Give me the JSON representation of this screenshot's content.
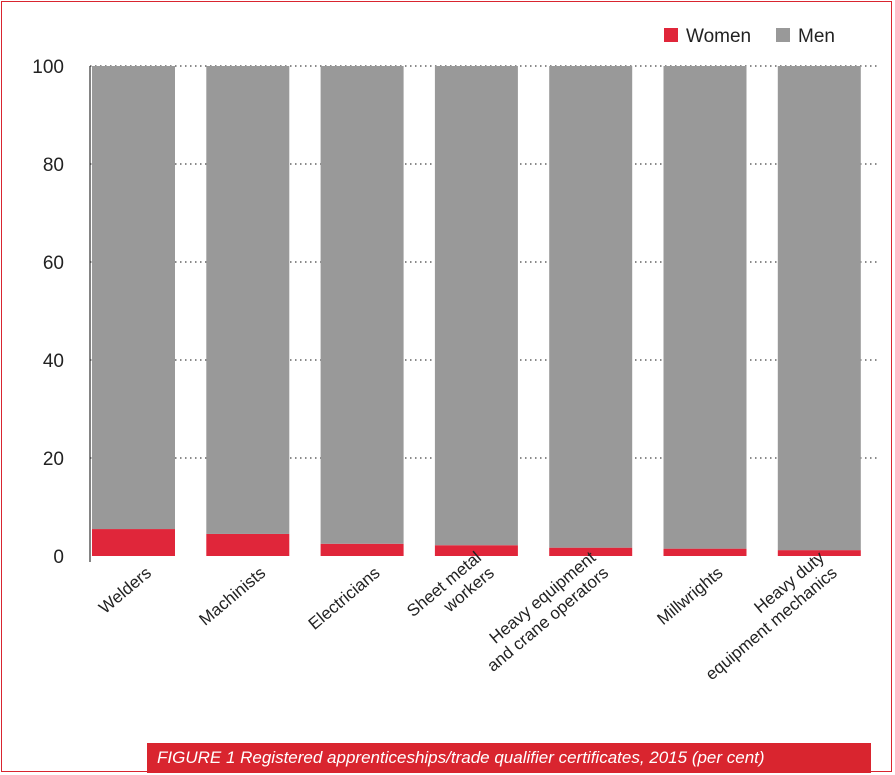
{
  "chart_data": {
    "type": "bar",
    "stacked": true,
    "categories": [
      [
        "Welders"
      ],
      [
        "Machinists"
      ],
      [
        "Electricians"
      ],
      [
        "Sheet metal",
        "workers"
      ],
      [
        "Heavy equipment",
        "and crane operators"
      ],
      [
        "Millwrights"
      ],
      [
        "Heavy duty",
        "equipment mechanics"
      ]
    ],
    "series": [
      {
        "name": "Women",
        "color": "#e0263a",
        "values": [
          5.5,
          4.5,
          2.5,
          2.2,
          1.7,
          1.5,
          1.2
        ]
      },
      {
        "name": "Men",
        "color": "#999999",
        "values": [
          94.5,
          95.5,
          97.5,
          97.8,
          98.3,
          98.5,
          98.8
        ]
      }
    ],
    "yticks": [
      "0",
      "20",
      "40",
      "60",
      "80",
      "100"
    ],
    "ylim": [
      0,
      100
    ],
    "grid": "dotted",
    "legend": "top-right"
  },
  "caption": "FIGURE 1 Registered apprenticeships/trade qualifier certificates, 2015 (per cent)"
}
